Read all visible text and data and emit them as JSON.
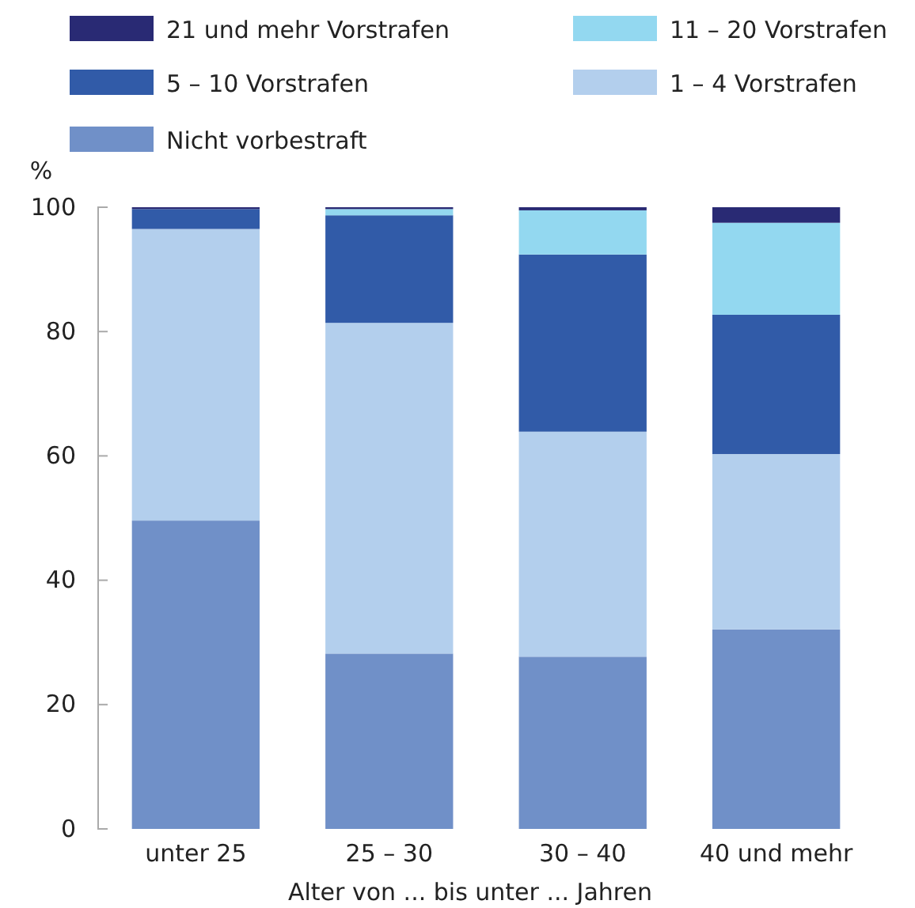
{
  "chart_data": {
    "type": "bar",
    "stacked": true,
    "xlabel": "Alter von ... bis unter ... Jahren",
    "ylabel": "%",
    "categories": [
      "unter 25",
      "25 – 30",
      "30 – 40",
      "40 und mehr"
    ],
    "series": [
      {
        "name": "Nicht vorbestraft",
        "color": "#7090c8",
        "values": [
          49.6,
          28.2,
          27.7,
          32.1
        ]
      },
      {
        "name": "1 – 4 Vorstrafen",
        "color": "#b3cfed",
        "values": [
          46.9,
          53.2,
          36.2,
          28.2
        ]
      },
      {
        "name": "5 – 10 Vorstrafen",
        "color": "#315ba8",
        "values": [
          3.2,
          17.3,
          28.5,
          22.4
        ]
      },
      {
        "name": "11 – 20 Vorstrafen",
        "color": "#93d8f0",
        "values": [
          0,
          1.0,
          7.1,
          14.8
        ]
      },
      {
        "name": "21 und mehr Vorstrafen",
        "color": "#292a74",
        "values": [
          0.3,
          0.3,
          0.5,
          2.5
        ]
      }
    ],
    "ylim": [
      0,
      100
    ],
    "yticks": [
      0,
      20,
      40,
      60,
      80,
      100
    ],
    "legend": "top"
  }
}
